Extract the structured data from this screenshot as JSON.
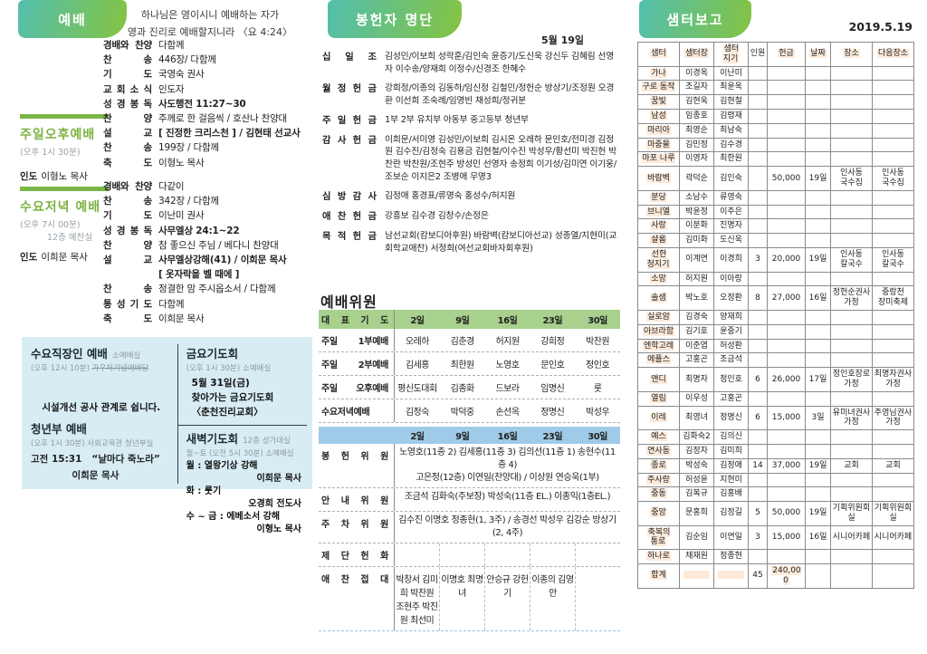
{
  "left": {
    "header": "예배",
    "verse1": "하나님은 영이시니 예배하는 자가",
    "verse2": "영과 진리로 예배할지니라 〈요 4:24〉",
    "services": [
      {
        "title": "주일오후예배",
        "time": "(오후 1시 30분)",
        "place": "",
        "leader_label": "인도",
        "leader": "이형노 목사",
        "items": [
          {
            "label": "경배와 찬양",
            "value": "다함께"
          },
          {
            "label": "찬 송",
            "value": "446장/ 다함께"
          },
          {
            "label": "기 도",
            "value": "국영숙 권사"
          },
          {
            "label": "교 회 소 식",
            "value": "인도자"
          },
          {
            "label": "성 경 봉 독",
            "value": "사도행전 11:27~30",
            "bold": true
          },
          {
            "label": "찬 양",
            "value": "주께로 한 걸음씩 / 호산나 찬양대"
          },
          {
            "label": "설 교",
            "value": "[ 진정한 크리스천 ] / 김현태 선교사",
            "bold": true
          },
          {
            "label": "찬 송",
            "value": "199장 / 다함께"
          },
          {
            "label": "축 도",
            "value": "이형노 목사"
          }
        ]
      },
      {
        "title": "수요저녁 예배",
        "time": "(오후 7시 00분)",
        "place": "12층 예찬실",
        "leader_label": "인도",
        "leader": "이희문 목사",
        "items": [
          {
            "label": "경배와 찬양",
            "value": "다같이"
          },
          {
            "label": "찬 송",
            "value": "342장 / 다함께"
          },
          {
            "label": "기 도",
            "value": "이난미 권사"
          },
          {
            "label": "성 경 봉 독",
            "value": "사무엘상 24:1~22",
            "bold": true
          },
          {
            "label": "찬 양",
            "value": "참 좋으신 주님 / 베다니 찬양대"
          },
          {
            "label": "설 교",
            "value": "사무엘상강해(41) / 이희문 목사",
            "bold": true
          },
          {
            "label": "",
            "value": "[ 옷자락을 벨 때에 ]",
            "bold": true
          },
          {
            "label": "찬 송",
            "value": "정결한 맘 주시옵소서 / 다함께"
          },
          {
            "label": "통 성 기 도",
            "value": "다함께"
          },
          {
            "label": "축 도",
            "value": "이희문 목사"
          }
        ]
      }
    ],
    "notice_box": {
      "wed_title": "수요직장인 예배",
      "wed_place": "소예배실",
      "wed_time": "(오후 12시 10분)",
      "wed_struck": "가우처기념예배당",
      "notice": "시설개선 공사 관계로 쉽니다.",
      "youth_title": "청년부 예배",
      "youth_time": "(오후 1시 30분)",
      "youth_place": "사회교육관 청년부실",
      "youth_ref": "고전 15:31",
      "youth_sermon": "“날마다 죽노라”",
      "youth_pastor": "이희문 목사",
      "friday_title": "금요기도회",
      "friday_time": "(오후 1시 30분) 소예배실",
      "friday_lines": [
        "5월 31일(금)",
        "찾아가는 금요기도회",
        "〈춘천진리교회〉"
      ],
      "dawn_title": "새벽기도회",
      "dawn_place": "12층 성가대실",
      "dawn_time": "월~토 (오전 5시 30분) 소예배실",
      "dawn_items": [
        {
          "topic": "월 : 열왕기상 강해",
          "person": "이희문 목사"
        },
        {
          "topic": "화 : 룻기",
          "person": "오경희 전도사"
        },
        {
          "topic": "수 ~ 금 : 에베소서 강해",
          "person": "이형노 목사"
        }
      ]
    }
  },
  "middle": {
    "header": "봉헌자 명단",
    "date": "5월 19일",
    "offerings": [
      {
        "label": "십 일 조",
        "text": "김성민/이보희 성락훈/김인숙 윤증기/도신욱 강신두 김혜림 선영자 이수송/양재희 이정수/신경조 한혜수"
      },
      {
        "label": "월 정 헌 금",
        "text": "강희정/이종의 김동하/임신정 김철민/정헌순 방상기/조정원 오경환 이선희 조숙례/임영빈 채성희/정귀분"
      },
      {
        "label": "주 일 헌 금",
        "text": "1부 2부 유치부 아동부 중고등부 청년부"
      },
      {
        "label": "감 사 헌 금",
        "text": "이희문/서미영 김성민/이보희 김시온 오레하 문인호/전미경 김정원 김수진/김정숙 김용금 김현철/이수진 박성우/황선미 박진헌 박찬란 박찬원/조현주 방성민 선영자 송정희 이기성/김미연 이기웅/조보순 이지은2 조병애 무명3"
      },
      {
        "label": "심 방 감 사",
        "text": "김정애 홍경표/류명숙 홍성수/허지원"
      },
      {
        "label": "애 찬 헌 금",
        "text": "강흥보 김수경 김창수/손정은"
      },
      {
        "label": "목 적 헌 금",
        "text": "남선교회(캄보디아후원) 바람벽(캄보디아선교) 성종열/지현미(교회학교애찬) 서정희(여선교회바자회후원)"
      }
    ],
    "committee": {
      "title": "예배위원",
      "head_label": "대 표 기 도",
      "dates": [
        "2일",
        "9일",
        "16일",
        "23일",
        "30일"
      ],
      "rows": [
        {
          "label": "주일 1부예배",
          "cells": [
            "오레하",
            "김춘경",
            "허지원",
            "강희정",
            "박찬원"
          ]
        },
        {
          "label": "주일 2부예배",
          "cells": [
            "김세홍",
            "최한원",
            "노영호",
            "문인호",
            "정인호"
          ]
        },
        {
          "label": "주일 오후예배",
          "cells": [
            "평신도대회",
            "김종화",
            "드보라",
            "임명신",
            "룻"
          ]
        },
        {
          "label": "수요저녁예배",
          "cells": [
            "김정숙",
            "박덕중",
            "손선옥",
            "정명신",
            "박성우"
          ]
        }
      ],
      "extra_rows": [
        {
          "label": "봉 헌 위 원",
          "span": "노영호(11층 2) 김세홍(11층 3) 김의선(11층 1) 송현수(11층 4)\n고은정(12층) 이연일(찬양대) / 이상원 연승욱(1부)"
        },
        {
          "label": "안 내 위 원",
          "span": "조금석 김화숙(주보장) 박성숙(11층 EL.) 이종익(1층EL.)"
        },
        {
          "label": "주 차 위 원",
          "span": "김수진 이명호 정종현(1, 3주) / 송경선 박성우 김강순 방상기(2, 4주)"
        },
        {
          "label": "제 단 헌 화",
          "cells": [
            "",
            "",
            "",
            "",
            ""
          ]
        },
        {
          "label": "애 찬 접 대",
          "cells": [
            "박창서 김미희 박찬원 조현주 박진원 최선미",
            "이명호 최명녀",
            "안승규 강헌기",
            "이종의 김영안",
            ""
          ]
        }
      ]
    }
  },
  "samteo": {
    "header": "샘터보고",
    "date": "2019.5.19",
    "columns": [
      "샘터",
      "샘터장",
      "샘터 지기",
      "인원",
      "헌금",
      "날짜",
      "장소",
      "다음장소"
    ],
    "plain_header_index": 3,
    "rows": [
      [
        "가나",
        "이경옥",
        "이난미",
        "",
        "",
        "",
        "",
        ""
      ],
      [
        "구로 동작",
        "조길자",
        "최윤옥",
        "",
        "",
        "",
        "",
        ""
      ],
      [
        "꿈빛",
        "김현욱",
        "김현철",
        "",
        "",
        "",
        "",
        ""
      ],
      [
        "남성",
        "임종호",
        "김령재",
        "",
        "",
        "",
        "",
        ""
      ],
      [
        "마리아",
        "최영순",
        "최남숙",
        "",
        "",
        "",
        "",
        ""
      ],
      [
        "마중물",
        "김민정",
        "김수경",
        "",
        "",
        "",
        "",
        ""
      ],
      [
        "마포 나루",
        "이영자",
        "최한원",
        "",
        "",
        "",
        "",
        ""
      ],
      [
        "바람벽",
        "곽덕순",
        "김인숙",
        "",
        "50,000",
        "19일",
        "인사동 국수집",
        "인사동 국수집"
      ],
      [
        "분당",
        "소남수",
        "류영숙",
        "",
        "",
        "",
        "",
        ""
      ],
      [
        "브니엘",
        "박윤정",
        "이주은",
        "",
        "",
        "",
        "",
        ""
      ],
      [
        "사랑",
        "이분화",
        "진명자",
        "",
        "",
        "",
        "",
        ""
      ],
      [
        "샬롬",
        "김미화",
        "도신욱",
        "",
        "",
        "",
        "",
        ""
      ],
      [
        "선한 청지기",
        "이계연",
        "이경희",
        "3",
        "20,000",
        "19일",
        "인사동 칼국수",
        "인사동 칼국수"
      ],
      [
        "소망",
        "허지원",
        "이아랑",
        "",
        "",
        "",
        "",
        ""
      ],
      [
        "솔샘",
        "박노호",
        "오정환",
        "8",
        "27,000",
        "16일",
        "정헌순권사 가정",
        "중랑천 장미축제"
      ],
      [
        "실로암",
        "김경숙",
        "양재희",
        "",
        "",
        "",
        "",
        ""
      ],
      [
        "아브라함",
        "김기호",
        "윤중기",
        "",
        "",
        "",
        "",
        ""
      ],
      [
        "엔학고레",
        "이준엽",
        "허성환",
        "",
        "",
        "",
        "",
        ""
      ],
      [
        "에플스",
        "고홍곤",
        "조금석",
        "",
        "",
        "",
        "",
        ""
      ],
      [
        "앤디",
        "최명자",
        "정인호",
        "6",
        "26,000",
        "17일",
        "정인호장로 가정",
        "최명자권사 가정"
      ],
      [
        "열림",
        "이우성",
        "고홍곤",
        "",
        "",
        "",
        "",
        ""
      ],
      [
        "이레",
        "최영녀",
        "정명신",
        "6",
        "15,000",
        "3일",
        "유미녀권사 가정",
        "주영님권사 가정"
      ],
      [
        "예스",
        "김화숙2",
        "김의신",
        "",
        "",
        "",
        "",
        ""
      ],
      [
        "연사동",
        "김정자",
        "김미희",
        "",
        "",
        "",
        "",
        ""
      ],
      [
        "종로",
        "박성숙",
        "김정애",
        "14",
        "37,000",
        "19일",
        "교회",
        "교회"
      ],
      [
        "주사랑",
        "허성윤",
        "지현미",
        "",
        "",
        "",
        "",
        ""
      ],
      [
        "중동",
        "김복규",
        "김홍배",
        "",
        "",
        "",
        "",
        ""
      ],
      [
        "중앙",
        "문홍희",
        "김정길",
        "5",
        "50,000",
        "19일",
        "기획위원회실",
        "기획위원회실"
      ],
      [
        "축복의 통로",
        "김순임",
        "이연일",
        "3",
        "15,000",
        "16일",
        "시니어카페",
        "시니어카페"
      ],
      [
        "하나로",
        "채재원",
        "정종현",
        "",
        "",
        "",
        "",
        ""
      ]
    ],
    "total": {
      "label": "합계",
      "people": "45",
      "money": "240,000"
    }
  }
}
